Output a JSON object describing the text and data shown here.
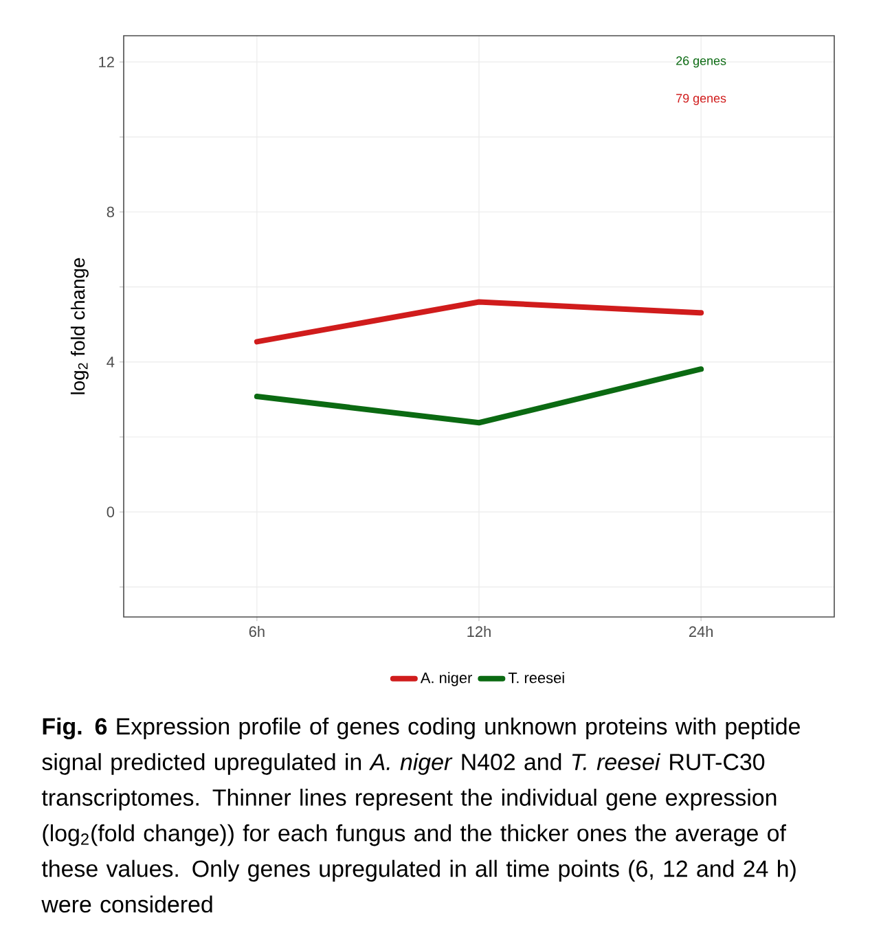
{
  "chart_data": {
    "type": "line",
    "ylabel": "log$_{2}$ fold change",
    "categories": [
      "6h",
      "12h",
      "24h"
    ],
    "series": [
      {
        "name": "A. niger",
        "color": "#d01c1c",
        "values": [
          4.54,
          5.6,
          5.31
        ]
      },
      {
        "name": "T. reesei",
        "color": "#0b6a12",
        "values": [
          3.08,
          2.38,
          3.81
        ]
      }
    ],
    "ylim": [
      -2.8,
      12.7
    ],
    "yticks": [
      {
        "value": -2,
        "label": null
      },
      0,
      {
        "value": 2,
        "label": null
      },
      4,
      {
        "value": 6,
        "label": null
      },
      8,
      {
        "value": 10,
        "label": null
      },
      12
    ],
    "grid": true,
    "legend": "bottom",
    "marker": "none",
    "line_style": "solid",
    "annotations": [
      "26 genes",
      "79 genes",
      "**Fig. 6** Expression profile of genes coding unknown proteins with peptide signal predicted upregulated in *A. niger* N402 and *T. reesei* RUT-C30 transcriptomes. Thinner lines represent the individual gene expression (log$_{2}$(fold change)) for each fungus and the thicker ones the average of these values. Only genes upregulated in all time points (6, 12 and 24 h) were considered"
    ]
  }
}
